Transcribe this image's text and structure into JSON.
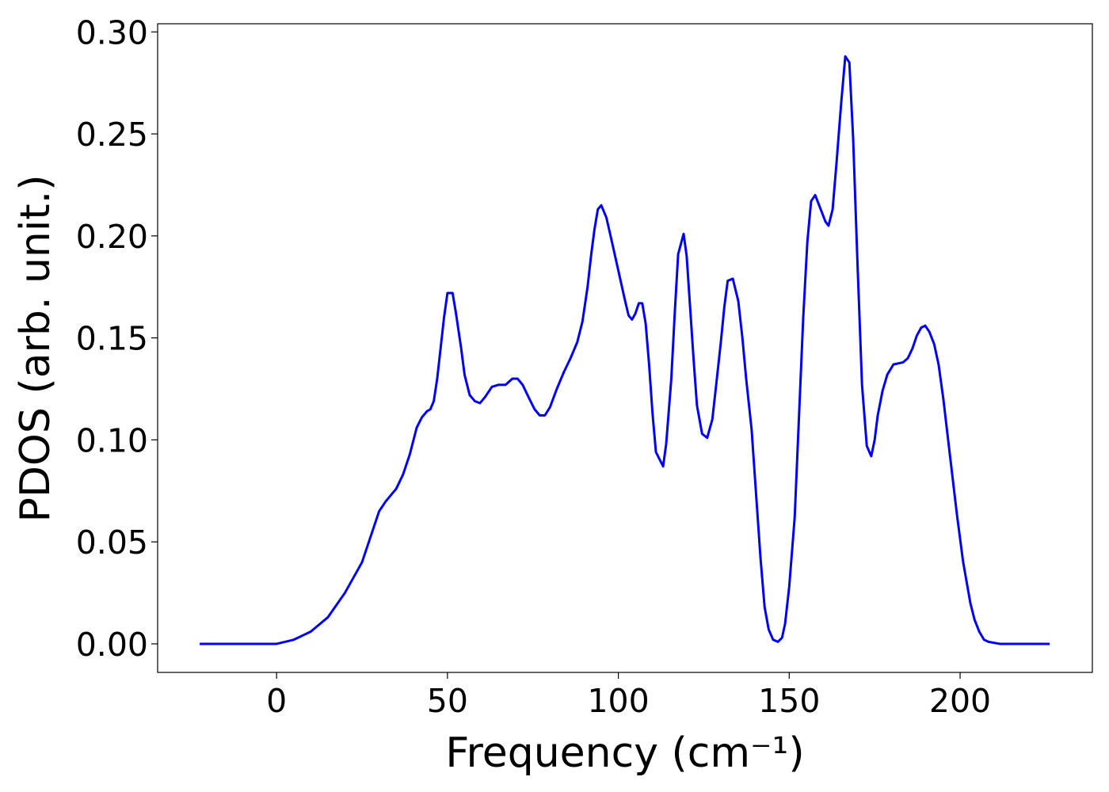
{
  "chart_data": {
    "type": "line",
    "x_label": "Frequency (cm⁻¹)",
    "y_label": "PDOS (arb. unit.)",
    "color": "#0000ff",
    "xlim": [
      -34.8,
      238.7
    ],
    "ylim": [
      -0.014,
      0.304
    ],
    "xticks": [
      0,
      50,
      100,
      150,
      200
    ],
    "yticks": [
      {
        "value": 0,
        "label": "0.00"
      },
      {
        "value": 0.05,
        "label": "0.05"
      },
      {
        "value": 0.1,
        "label": "0.10"
      },
      {
        "value": 0.15,
        "label": "0.15"
      },
      {
        "value": 0.2,
        "label": "0.20"
      },
      {
        "value": 0.25,
        "label": "0.25"
      },
      {
        "value": 0.3,
        "label": "0.30"
      }
    ],
    "x": [
      -22.5,
      0,
      5,
      10,
      15,
      20,
      25,
      28,
      30,
      32,
      35,
      37,
      39,
      41,
      42.5,
      44,
      45,
      46,
      47,
      48,
      49,
      50,
      51.5,
      52.5,
      54,
      55,
      56.5,
      58,
      59.5,
      61,
      63,
      65,
      67,
      69,
      70.5,
      72,
      74,
      75.5,
      77,
      78.5,
      80,
      82,
      84,
      86,
      88,
      89.5,
      91,
      92,
      93,
      94,
      95,
      96.5,
      98,
      100,
      102,
      103,
      104,
      105,
      106,
      107,
      108,
      109,
      110,
      111,
      113.1,
      114,
      115.5,
      116.5,
      117.5,
      119.1,
      120,
      121,
      122,
      123,
      124.5,
      126,
      127.5,
      128.5,
      130,
      131,
      132,
      133.5,
      135.1,
      136.3,
      137.4,
      139,
      141.6,
      142.8,
      144,
      145.3,
      146.7,
      147.9,
      148.8,
      150,
      151.6,
      154.1,
      155.3,
      156.4,
      157.6,
      160.6,
      161.5,
      162.7,
      163.8,
      165.2,
      166.4,
      167.6,
      168.7,
      169.9,
      171.3,
      172.7,
      174,
      175,
      175.9,
      177.3,
      178.7,
      180.5,
      183.3,
      184.7,
      186.1,
      187.3,
      188.6,
      189.8,
      191,
      192.4,
      193.7,
      195.1,
      197.2,
      199.1,
      200.9,
      203,
      204.2,
      205.6,
      207,
      208.3,
      211.6,
      226.2
    ],
    "values": [
      0,
      0,
      0.002,
      0.006,
      0.013,
      0.025,
      0.04,
      0.055,
      0.065,
      0.07,
      0.076,
      0.083,
      0.093,
      0.106,
      0.111,
      0.114,
      0.115,
      0.119,
      0.13,
      0.145,
      0.16,
      0.172,
      0.172,
      0.162,
      0.145,
      0.132,
      0.122,
      0.119,
      0.118,
      0.121,
      0.126,
      0.127,
      0.127,
      0.13,
      0.13,
      0.127,
      0.12,
      0.115,
      0.112,
      0.112,
      0.116,
      0.125,
      0.133,
      0.14,
      0.148,
      0.158,
      0.175,
      0.19,
      0.203,
      0.213,
      0.215,
      0.209,
      0.198,
      0.183,
      0.168,
      0.161,
      0.159,
      0.162,
      0.167,
      0.167,
      0.157,
      0.137,
      0.113,
      0.094,
      0.087,
      0.098,
      0.13,
      0.162,
      0.191,
      0.201,
      0.19,
      0.165,
      0.14,
      0.117,
      0.103,
      0.101,
      0.11,
      0.125,
      0.148,
      0.165,
      0.178,
      0.179,
      0.168,
      0.15,
      0.13,
      0.105,
      0.042,
      0.018,
      0.007,
      0.002,
      0.001,
      0.003,
      0.01,
      0.028,
      0.062,
      0.16,
      0.197,
      0.217,
      0.22,
      0.207,
      0.205,
      0.213,
      0.235,
      0.265,
      0.288,
      0.285,
      0.248,
      0.19,
      0.127,
      0.097,
      0.092,
      0.1,
      0.112,
      0.124,
      0.132,
      0.137,
      0.138,
      0.14,
      0.145,
      0.151,
      0.155,
      0.156,
      0.153,
      0.147,
      0.137,
      0.12,
      0.09,
      0.063,
      0.04,
      0.02,
      0.012,
      0.006,
      0.002,
      0.001,
      0,
      0
    ]
  }
}
